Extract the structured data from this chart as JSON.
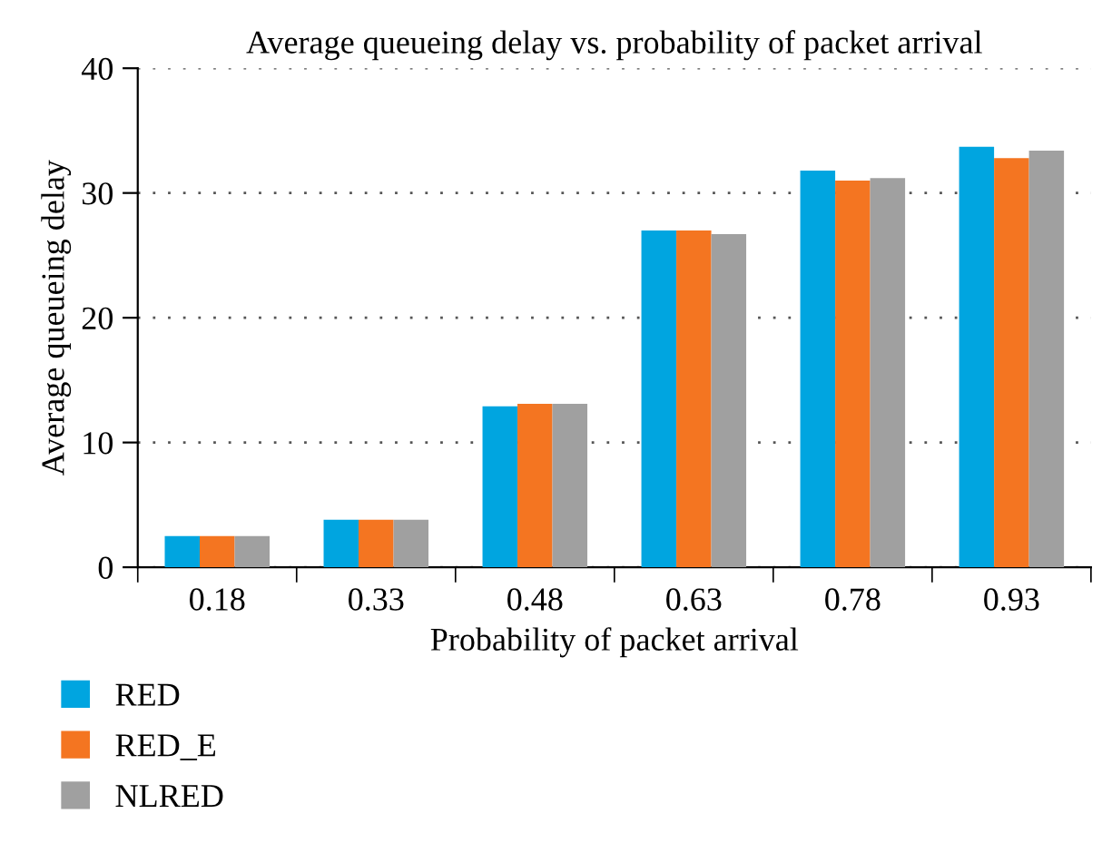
{
  "chart_data": {
    "type": "bar",
    "title": "Average queueing delay vs. probability of packet arrival",
    "xlabel": "Probability of packet arrival",
    "ylabel": "Average queueing delay",
    "categories": [
      "0.18",
      "0.33",
      "0.48",
      "0.63",
      "0.78",
      "0.93"
    ],
    "series": [
      {
        "name": "RED",
        "color": "#00a5e0",
        "values": [
          2.5,
          3.8,
          12.9,
          27.0,
          31.8,
          33.7
        ]
      },
      {
        "name": "RED_E",
        "color": "#f47521",
        "values": [
          2.5,
          3.8,
          13.1,
          27.0,
          31.0,
          32.8
        ]
      },
      {
        "name": "NLRED",
        "color": "#a0a0a0",
        "values": [
          2.5,
          3.8,
          13.1,
          26.7,
          31.2,
          33.4
        ]
      }
    ],
    "ylim": [
      0,
      40
    ],
    "yticks": [
      0,
      10,
      20,
      30,
      40
    ],
    "grid": "y",
    "legend": "bottom left"
  }
}
